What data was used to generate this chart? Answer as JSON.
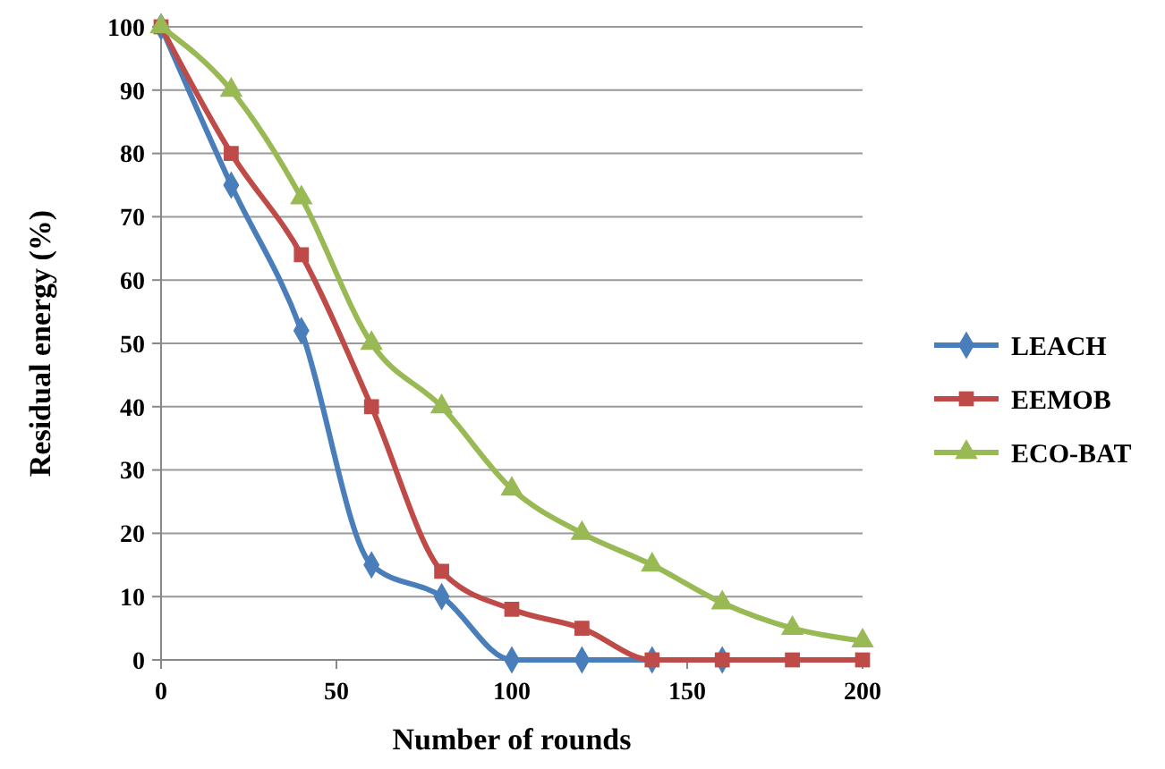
{
  "chart_data": {
    "type": "line",
    "xlabel": "Number of rounds",
    "ylabel": "Residual energy (%)",
    "x": [
      0,
      20,
      40,
      60,
      80,
      100,
      120,
      140,
      160,
      180,
      200
    ],
    "series": [
      {
        "name": "LEACH",
        "color": "#4a7ebb",
        "marker": "diamond",
        "values": [
          100,
          75,
          52,
          15,
          10,
          0,
          0,
          0,
          0,
          null,
          null
        ]
      },
      {
        "name": "EEMOB",
        "color": "#be4b48",
        "marker": "square",
        "values": [
          100,
          80,
          64,
          40,
          14,
          8,
          5,
          0,
          0,
          0,
          0
        ]
      },
      {
        "name": "ECO-BAT",
        "color": "#98b954",
        "marker": "triangle",
        "values": [
          100,
          90,
          73,
          50,
          40,
          27,
          20,
          15,
          9,
          5,
          3
        ]
      }
    ],
    "xlim": [
      0,
      200
    ],
    "xticks": [
      0,
      50,
      100,
      150,
      200
    ],
    "ylim": [
      0,
      100
    ],
    "yticks": [
      0,
      10,
      20,
      30,
      40,
      50,
      60,
      70,
      80,
      90,
      100
    ],
    "grid": "y",
    "legend": "right",
    "line_style": "solid"
  }
}
